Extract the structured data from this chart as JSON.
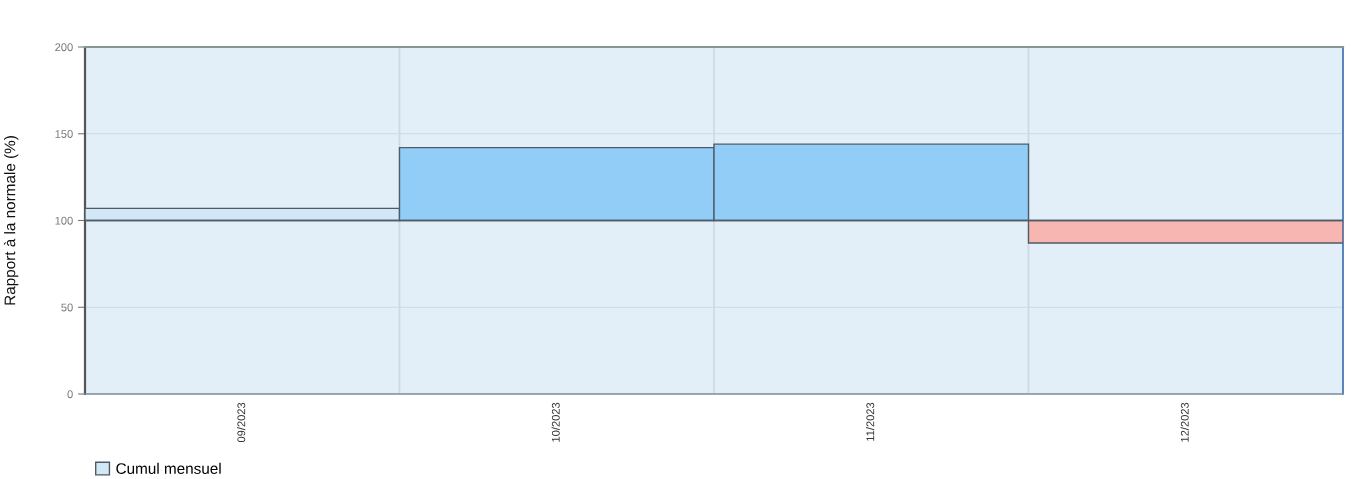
{
  "chart_data": {
    "type": "bar",
    "ylabel": "Rapport à la normale (%)",
    "categories": [
      "09/2023",
      "10/2023",
      "11/2023",
      "12/2023"
    ],
    "series": [
      {
        "name": "Cumul mensuel",
        "base": [
          100,
          100,
          100,
          100
        ],
        "values": [
          7,
          42,
          44,
          -13
        ],
        "colors": [
          "#d3e8f6",
          "#92cdf7",
          "#92cdf7",
          "#f8b6b3"
        ]
      }
    ],
    "ylim": [
      0,
      200
    ],
    "yticks": [
      0,
      50,
      100,
      150,
      200
    ],
    "ref_lines": [
      {
        "axis": "y",
        "value": 100,
        "color": "#4f5b66"
      }
    ],
    "grid": true,
    "legend": "bottom left"
  }
}
